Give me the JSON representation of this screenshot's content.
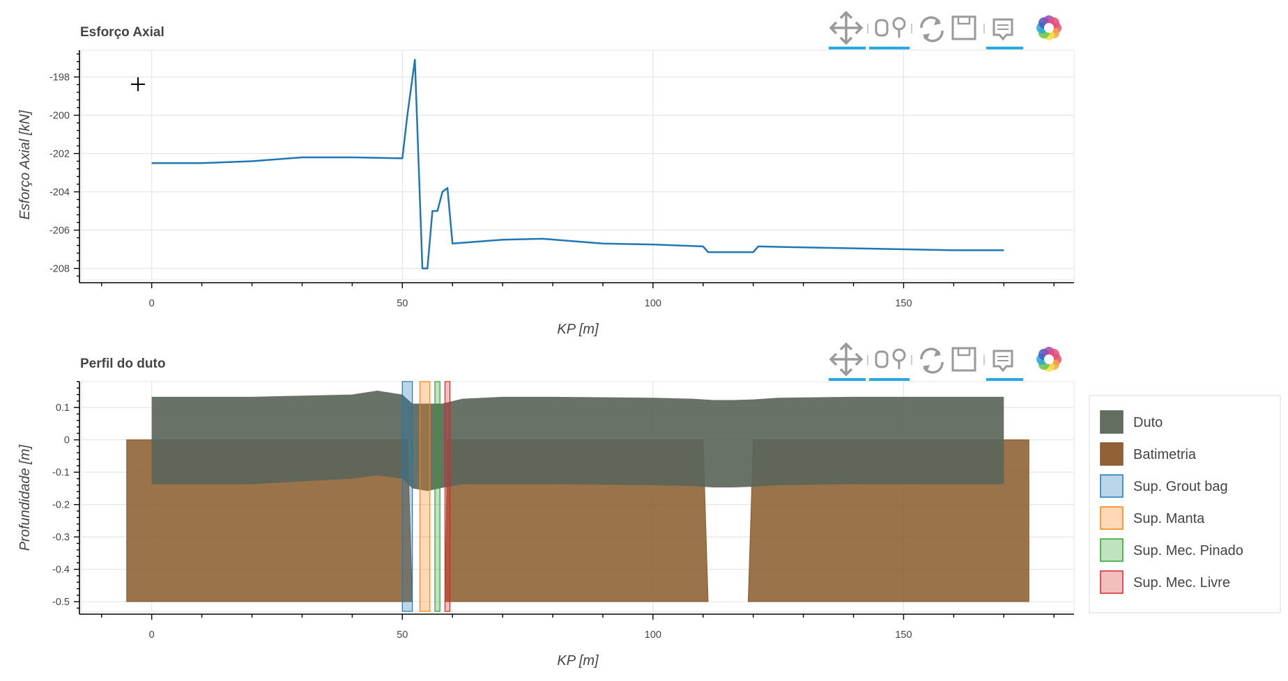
{
  "toolbar": {
    "tools": [
      "pan-icon",
      "box-zoom-icon",
      "reset-icon",
      "save-icon",
      "hover-icon",
      "bokeh-logo-icon"
    ],
    "accent_color": "#26aae1"
  },
  "chart_data": [
    {
      "type": "line",
      "title": "Esforço Axial",
      "xlabel": "KP [m]",
      "ylabel": "Esforço Axial [kN]",
      "xlim": [
        -14,
        184
      ],
      "ylim": [
        -208.6,
        -196.6
      ],
      "x_ticks": [
        0,
        50,
        100,
        150
      ],
      "y_ticks": [
        -198,
        -200,
        -202,
        -204,
        -206,
        -208
      ],
      "grid": true,
      "series": [
        {
          "color": "#1f77b4",
          "x": [
            0,
            10,
            20,
            30,
            40,
            50,
            51,
            52.5,
            54,
            55,
            56,
            57,
            58,
            59,
            60,
            70,
            78,
            90,
            100,
            110,
            111,
            120,
            121,
            130,
            140,
            150,
            160,
            170
          ],
          "y": [
            -202.5,
            -202.5,
            -202.4,
            -202.2,
            -202.2,
            -202.25,
            -200,
            -197.1,
            -208,
            -208,
            -205,
            -205,
            -204,
            -203.8,
            -206.7,
            -206.5,
            -206.45,
            -206.7,
            -206.75,
            -206.85,
            -207.15,
            -207.15,
            -206.85,
            -206.9,
            -206.95,
            -207,
            -207.05,
            -207.05
          ]
        }
      ]
    },
    {
      "type": "area",
      "title": "Perfil do duto",
      "xlabel": "KP [m]",
      "ylabel": "Profundidade [m]",
      "xlim": [
        -14,
        184
      ],
      "ylim": [
        -0.53,
        0.18
      ],
      "x_ticks": [
        0,
        50,
        100,
        150
      ],
      "y_ticks": [
        0.1,
        0,
        -0.1,
        -0.2,
        -0.3,
        -0.4,
        -0.5
      ],
      "y_tick_labels": [
        "0.1",
        "0",
        "-0.1",
        "-0.2",
        "-0.3",
        "-0.4",
        "-0.5"
      ],
      "grid": true,
      "legend_position": "right",
      "legend": [
        {
          "label": "Duto",
          "color": "#5b6659"
        },
        {
          "label": "Batimetria",
          "color": "#8a5a2b"
        },
        {
          "label": "Sup. Grout bag",
          "color": "#1f77b4"
        },
        {
          "label": "Sup. Manta",
          "color": "#ff7f0e"
        },
        {
          "label": "Sup. Mec. Pinado",
          "color": "#2ca02c"
        },
        {
          "label": "Sup. Mec. Livre",
          "color": "#d62728"
        }
      ],
      "duto": {
        "x": [
          0,
          20,
          40,
          45,
          50,
          52,
          55,
          58,
          62,
          70,
          80,
          100,
          108,
          112,
          116,
          120,
          125,
          140,
          170
        ],
        "top": [
          0.133,
          0.133,
          0.14,
          0.152,
          0.14,
          0.112,
          0.112,
          0.112,
          0.127,
          0.133,
          0.133,
          0.13,
          0.127,
          0.123,
          0.123,
          0.125,
          0.13,
          0.133,
          0.133
        ],
        "bottom": [
          -0.137,
          -0.137,
          -0.12,
          -0.11,
          -0.12,
          -0.15,
          -0.158,
          -0.148,
          -0.137,
          -0.137,
          -0.137,
          -0.14,
          -0.143,
          -0.147,
          -0.147,
          -0.145,
          -0.14,
          -0.137,
          -0.137
        ]
      },
      "batimetria": [
        {
          "x": [
            -5,
            50,
            51,
            52,
            52,
            40,
            30,
            20,
            0,
            -5
          ],
          "y": [
            0,
            0,
            0,
            -0.5,
            -0.5,
            -0.5,
            -0.5,
            -0.5,
            -0.5,
            -0.5
          ]
        },
        {
          "x": [
            59,
            110,
            111,
            111,
            59.5,
            58.5
          ],
          "y": [
            0,
            0,
            -0.5,
            -0.5,
            -0.5,
            -0.5
          ]
        },
        {
          "x": [
            120,
            175,
            175,
            119
          ],
          "y": [
            0,
            0,
            -0.5,
            -0.5
          ]
        }
      ],
      "supports": [
        {
          "type": "Sup. Grout bag",
          "x0": 50,
          "x1": 52
        },
        {
          "type": "Sup. Manta",
          "x0": 53.5,
          "x1": 55.5
        },
        {
          "type": "Sup. Mec. Pinado",
          "x0": 56.5,
          "x1": 57.5
        },
        {
          "type": "Sup. Mec. Livre",
          "x0": 58.5,
          "x1": 59.5
        }
      ]
    }
  ]
}
